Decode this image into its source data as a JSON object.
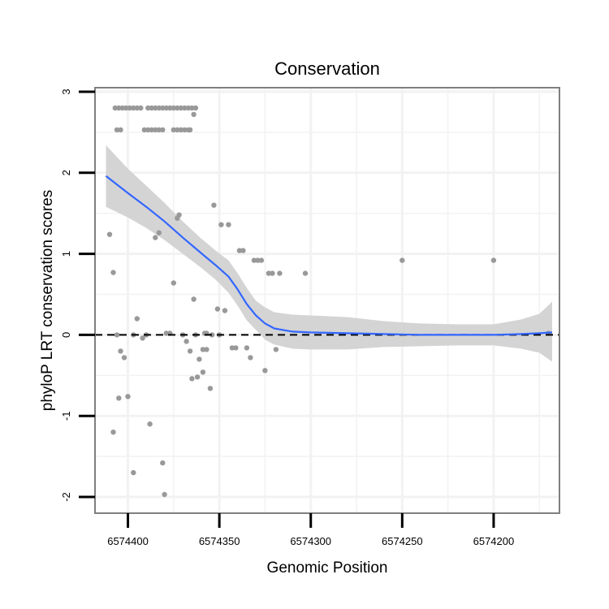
{
  "chart_data": {
    "type": "scatter",
    "title": "Conservation",
    "xlabel": "Genomic Position",
    "ylabel": "phyloP LRT conservation scores",
    "x_reversed": true,
    "xlim": [
      6574418,
      6574164
    ],
    "ylim": [
      -2.2,
      3.05
    ],
    "x_ticks": [
      6574400,
      6574350,
      6574300,
      6574250,
      6574200
    ],
    "x_tick_labels": [
      "6574400",
      "6574350",
      "6574300",
      "6574250",
      "6574200"
    ],
    "y_ticks": [
      3,
      2,
      1,
      0,
      -1,
      -2
    ],
    "y_tick_labels": [
      "3",
      "2",
      "1",
      "0",
      "-1",
      "-2"
    ],
    "grid": true,
    "reference_line": {
      "y": 0,
      "style": "dashed",
      "color": "#000000"
    },
    "colors": {
      "points": "#999999",
      "smooth": "#3366ff",
      "band": "#d4d4d4",
      "panel_border": "#7f7f7f",
      "grid": "#f2f2f2"
    },
    "points": {
      "color": "#999999",
      "x": [
        6574407,
        6574405,
        6574403,
        6574401,
        6574399,
        6574397,
        6574395,
        6574393,
        6574389,
        6574387,
        6574385,
        6574383,
        6574381,
        6574379,
        6574377,
        6574375,
        6574373,
        6574371,
        6574369,
        6574367,
        6574365,
        6574363,
        6574406,
        6574404,
        6574391,
        6574389,
        6574387,
        6574385,
        6574383,
        6574381,
        6574375,
        6574373,
        6574371,
        6574369,
        6574367,
        6574366,
        6574364,
        6574410,
        6574408,
        6574406,
        6574404,
        6574402,
        6574400,
        6574397,
        6574395,
        6574392,
        6574385,
        6574383,
        6574381,
        6574380,
        6574379,
        6574377,
        6574375,
        6574373,
        6574372,
        6574370,
        6574368,
        6574366,
        6574364,
        6574363,
        6574361,
        6574359,
        6574357,
        6574355,
        6574353,
        6574351,
        6574349,
        6574347,
        6574345,
        6574343,
        6574341,
        6574339,
        6574337,
        6574335,
        6574333,
        6574331,
        6574329,
        6574327,
        6574325,
        6574323,
        6574321,
        6574319,
        6574317,
        6574303,
        6574250,
        6574200,
        6574170,
        6574397,
        6574390,
        6574388,
        6574408,
        6574405,
        6574362,
        6574365,
        6574359,
        6574357,
        6574354,
        6574350,
        6574358
      ],
      "y": [
        2.8,
        2.8,
        2.8,
        2.8,
        2.8,
        2.8,
        2.8,
        2.8,
        2.8,
        2.8,
        2.8,
        2.8,
        2.8,
        2.8,
        2.8,
        2.8,
        2.8,
        2.8,
        2.8,
        2.8,
        2.8,
        2.8,
        2.53,
        2.53,
        2.53,
        2.53,
        2.53,
        2.53,
        2.53,
        2.53,
        2.53,
        2.53,
        2.53,
        2.53,
        2.53,
        2.53,
        2.72,
        1.24,
        0.77,
        0,
        -0.2,
        -0.28,
        -0.76,
        -1.7,
        0.2,
        -0.04,
        1.2,
        1.26,
        -1.58,
        -1.97,
        0.02,
        0.02,
        0.64,
        1.44,
        1.48,
        0,
        -0.08,
        -0.2,
        0.44,
        0,
        -0.3,
        -0.46,
        0.02,
        -0.66,
        1.6,
        0.32,
        1.36,
        0.3,
        1.36,
        -0.16,
        -0.16,
        1.04,
        1.04,
        -0.16,
        -0.28,
        0.92,
        0.92,
        0.92,
        -0.44,
        0.76,
        0.76,
        -0.18,
        0.76,
        0.76,
        0.92,
        0.92,
        0.02,
        0,
        0,
        -1.1,
        -1.2,
        -0.78,
        -0.52,
        -0.54,
        -0.18,
        -0.18,
        0,
        0,
        0.02
      ]
    },
    "smooth": {
      "method": "loess",
      "color": "#3366ff",
      "x": [
        6574412,
        6574400,
        6574390,
        6574380,
        6574370,
        6574360,
        6574352,
        6574345,
        6574340,
        6574335,
        6574330,
        6574325,
        6574320,
        6574310,
        6574300,
        6574280,
        6574260,
        6574240,
        6574220,
        6574200,
        6574185,
        6574175,
        6574168
      ],
      "y": [
        1.96,
        1.75,
        1.58,
        1.4,
        1.2,
        1.01,
        0.86,
        0.72,
        0.56,
        0.38,
        0.24,
        0.14,
        0.08,
        0.04,
        0.03,
        0.02,
        0.01,
        0.0,
        0.0,
        0.0,
        0.01,
        0.02,
        0.03
      ],
      "lower": [
        1.58,
        1.45,
        1.32,
        1.17,
        1.0,
        0.83,
        0.68,
        0.52,
        0.36,
        0.18,
        0.06,
        -0.06,
        -0.12,
        -0.17,
        -0.18,
        -0.18,
        -0.15,
        -0.14,
        -0.13,
        -0.13,
        -0.17,
        -0.22,
        -0.33
      ],
      "upper": [
        2.34,
        2.05,
        1.84,
        1.63,
        1.4,
        1.19,
        1.04,
        0.92,
        0.76,
        0.58,
        0.42,
        0.34,
        0.28,
        0.25,
        0.24,
        0.22,
        0.17,
        0.14,
        0.13,
        0.13,
        0.19,
        0.26,
        0.41
      ]
    }
  }
}
